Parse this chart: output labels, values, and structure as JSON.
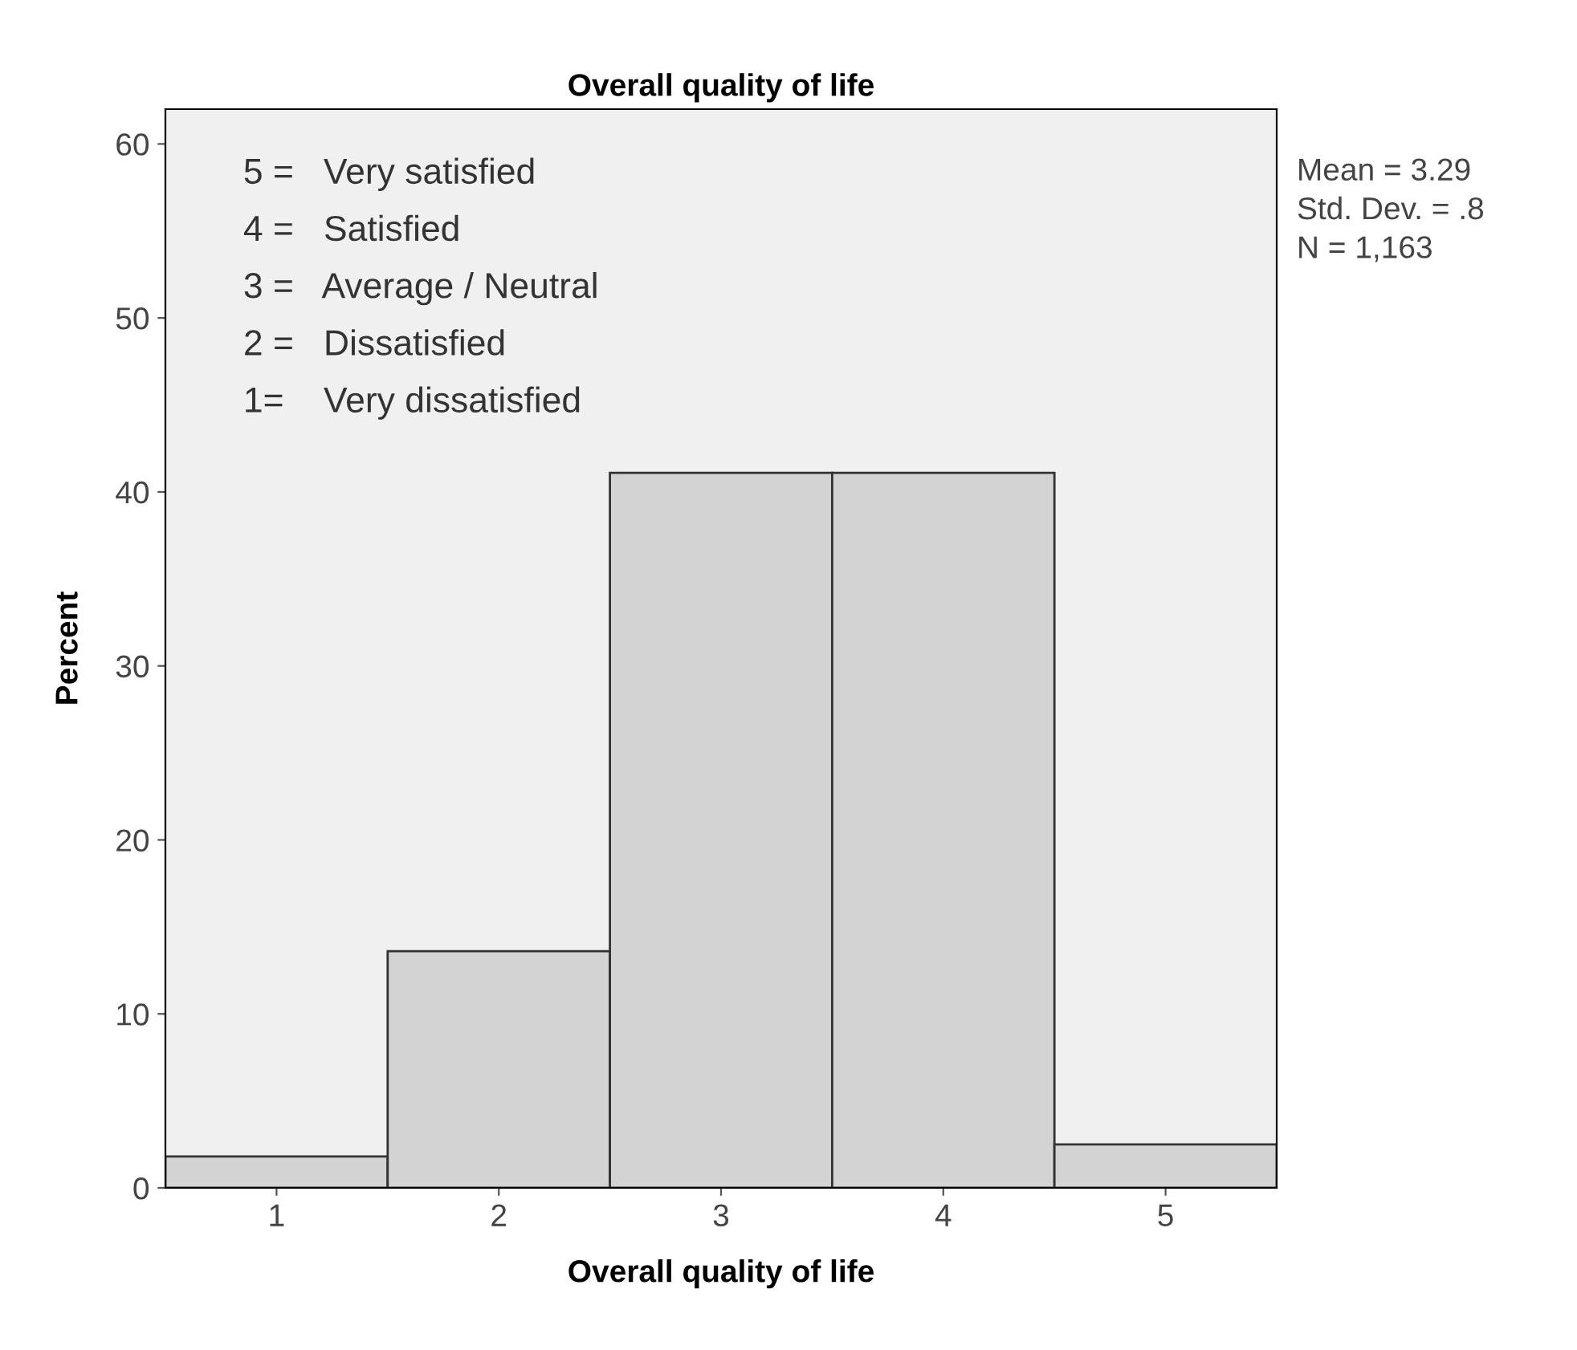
{
  "chart_data": {
    "type": "histogram",
    "title": "Overall quality of life",
    "xlabel": "Overall quality of life",
    "ylabel": "Percent",
    "bins": [
      0.5,
      1.5,
      2.5,
      3.5,
      4.5,
      5.5
    ],
    "values": [
      1.8,
      13.6,
      41.1,
      41.1,
      2.5
    ],
    "color": "#d3d3d3",
    "xlim": [
      0.5,
      5.5
    ],
    "xticks": [
      1,
      2,
      3,
      4,
      5
    ],
    "ylim": [
      0,
      62
    ],
    "yticks": [
      0,
      10,
      20,
      30,
      40,
      50,
      60
    ],
    "grid": false,
    "annotations": [
      "5 =   Very satisfied",
      "4 =   Satisfied",
      "3 =   Average / Neutral",
      "2 =   Dissatisfied",
      "1=    Very dissatisfied",
      "Mean = 3.29",
      "Std. Dev. = .8",
      "N = 1,163"
    ]
  }
}
